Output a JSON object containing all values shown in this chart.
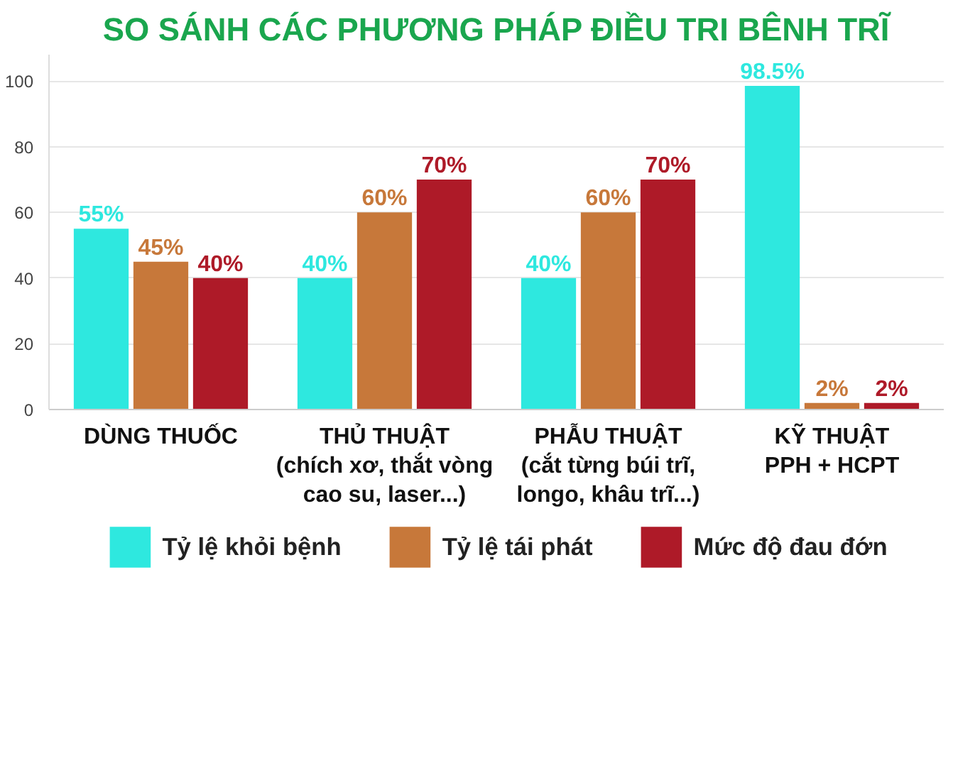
{
  "chart_data": {
    "type": "bar",
    "title": "SO SÁNH CÁC PHƯƠNG PHÁP ĐIỀU TRI BÊNH TRĨ",
    "categories": [
      "DÙNG THUỐC\n ",
      "THỦ THUẬT\n(chích xơ, thắt vòng\ncao su, laser...)",
      "PHẪU THUẬT\n(cắt từng búi trĩ,\nlongo, khâu trĩ...)",
      "KỸ THUẬT\nPPH + HCPT"
    ],
    "series": [
      {
        "name": "Tỷ lệ khỏi bệnh",
        "color": "#2ee8df",
        "values": [
          55,
          40,
          40,
          98.5
        ],
        "value_labels": [
          "55%",
          "40%",
          "40%",
          "98.5%"
        ]
      },
      {
        "name": "Tỷ lệ tái phát",
        "color": "#c7783a",
        "values": [
          45,
          60,
          60,
          2
        ],
        "value_labels": [
          "45%",
          "60%",
          "60%",
          "2%"
        ]
      },
      {
        "name": "Mức độ đau đớn",
        "color": "#ae1a28",
        "values": [
          40,
          70,
          70,
          2
        ],
        "value_labels": [
          "40%",
          "70%",
          "70%",
          "2%"
        ]
      }
    ],
    "ylim": [
      0,
      108
    ],
    "yticks": [
      0,
      20,
      40,
      60,
      80,
      100
    ],
    "grid": "y",
    "legend": "bottom"
  }
}
